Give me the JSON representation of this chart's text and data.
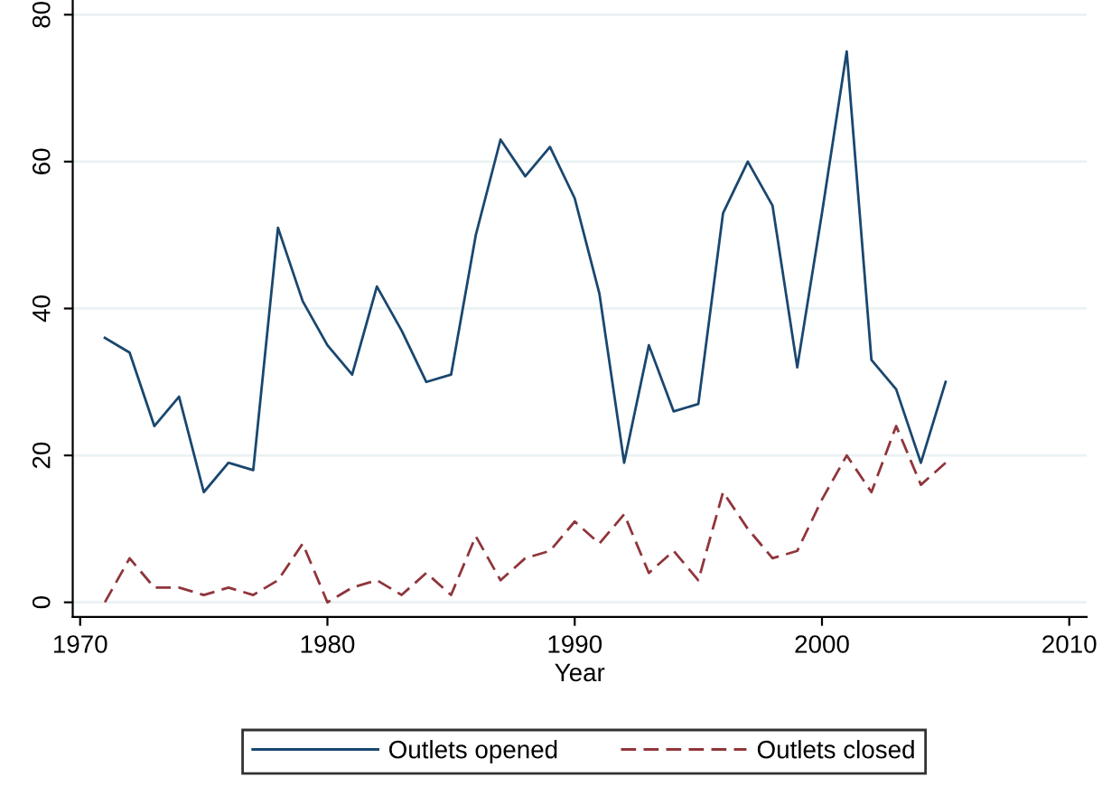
{
  "chart_data": {
    "type": "line",
    "xlabel": "Year",
    "x": [
      1971,
      1972,
      1973,
      1974,
      1975,
      1976,
      1977,
      1978,
      1979,
      1980,
      1981,
      1982,
      1983,
      1984,
      1985,
      1986,
      1987,
      1988,
      1989,
      1990,
      1991,
      1992,
      1993,
      1994,
      1995,
      1996,
      1997,
      1998,
      1999,
      2000,
      2001,
      2002,
      2003,
      2004,
      2005
    ],
    "series": [
      {
        "name": "Outlets opened",
        "color": "#1a476f",
        "line_style": "solid",
        "values": [
          36,
          34,
          24,
          28,
          15,
          19,
          18,
          51,
          41,
          35,
          31,
          43,
          37,
          30,
          31,
          50,
          63,
          58,
          62,
          55,
          42,
          19,
          35,
          26,
          27,
          53,
          60,
          54,
          32,
          53,
          75,
          33,
          29,
          19,
          30
        ]
      },
      {
        "name": "Outlets closed",
        "color": "#90353b",
        "line_style": "dashed",
        "values": [
          0,
          6,
          2,
          2,
          1,
          2,
          1,
          3,
          8,
          0,
          2,
          3,
          1,
          4,
          1,
          9,
          3,
          6,
          7,
          11,
          8,
          12,
          4,
          7,
          3,
          15,
          10,
          6,
          7,
          14,
          20,
          15,
          24,
          16,
          19
        ]
      }
    ],
    "xlim": [
      1969.7,
      2010.7
    ],
    "xticks": [
      1970,
      1980,
      1990,
      2000,
      2010
    ],
    "ylim": [
      -2,
      82
    ],
    "yticks": [
      0,
      20,
      40,
      60,
      80
    ],
    "grid": "y",
    "legend": "bottom"
  }
}
